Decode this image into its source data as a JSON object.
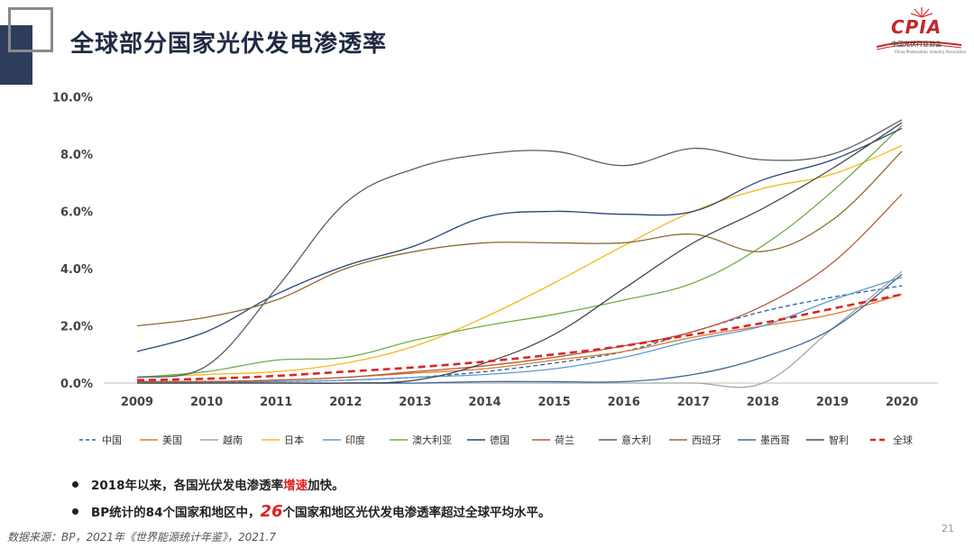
{
  "header": {
    "title": "全球部分国家光伏发电渗透率",
    "logo": {
      "name": "CPIA",
      "line1": "中国光伏行业协会",
      "line2": "China Photovoltaic Industry Association"
    }
  },
  "chart_data": {
    "type": "line",
    "title": "",
    "xlabel": "",
    "ylabel": "",
    "x": [
      "2009",
      "2010",
      "2011",
      "2012",
      "2013",
      "2014",
      "2015",
      "2016",
      "2017",
      "2018",
      "2019",
      "2020"
    ],
    "ylim": [
      0,
      10
    ],
    "yticks": [
      "0.0%",
      "2.0%",
      "4.0%",
      "6.0%",
      "8.0%",
      "10.0%"
    ],
    "grid": false,
    "legend_position": "bottom",
    "series": [
      {
        "name": "中国",
        "color": "#2e5fa8",
        "dash": "dashed",
        "values": [
          0.05,
          0.05,
          0.05,
          0.1,
          0.2,
          0.4,
          0.7,
          1.1,
          1.8,
          2.5,
          3.0,
          3.4
        ]
      },
      {
        "name": "美国",
        "color": "#e07a2a",
        "dash": "solid",
        "values": [
          0.05,
          0.05,
          0.1,
          0.2,
          0.35,
          0.5,
          0.8,
          1.1,
          1.6,
          2.0,
          2.4,
          3.1
        ]
      },
      {
        "name": "越南",
        "color": "#a5a5a5",
        "dash": "solid",
        "values": [
          0,
          0,
          0,
          0,
          0,
          0,
          0,
          0,
          0,
          0,
          1.9,
          3.9
        ]
      },
      {
        "name": "日本",
        "color": "#f5b81c",
        "dash": "solid",
        "values": [
          0.2,
          0.3,
          0.4,
          0.7,
          1.3,
          2.3,
          3.5,
          4.8,
          6.0,
          6.8,
          7.3,
          8.3
        ]
      },
      {
        "name": "印度",
        "color": "#5b9bd5",
        "dash": "solid",
        "values": [
          0,
          0,
          0.05,
          0.1,
          0.2,
          0.3,
          0.5,
          0.9,
          1.5,
          2.0,
          2.9,
          3.7
        ]
      },
      {
        "name": "澳大利亚",
        "color": "#70ad47",
        "dash": "solid",
        "values": [
          0.2,
          0.4,
          0.8,
          0.9,
          1.5,
          2.0,
          2.4,
          2.9,
          3.5,
          4.8,
          6.7,
          9.0
        ]
      },
      {
        "name": "德国",
        "color": "#264478",
        "dash": "solid",
        "values": [
          1.1,
          1.8,
          3.1,
          4.1,
          4.8,
          5.8,
          6.0,
          5.9,
          6.0,
          7.1,
          7.8,
          8.9
        ]
      },
      {
        "name": "荷兰",
        "color": "#b55a3a",
        "dash": "solid",
        "values": [
          0.05,
          0.05,
          0.1,
          0.2,
          0.4,
          0.6,
          0.9,
          1.3,
          1.8,
          2.7,
          4.2,
          6.6
        ]
      },
      {
        "name": "意大利",
        "color": "#555e6e",
        "dash": "solid",
        "values": [
          0.2,
          0.6,
          3.3,
          6.3,
          7.5,
          8.0,
          8.1,
          7.6,
          8.2,
          7.8,
          8.0,
          9.2
        ]
      },
      {
        "name": "西班牙",
        "color": "#8a6d2c",
        "dash": "solid",
        "values": [
          2.0,
          2.3,
          2.9,
          4.0,
          4.6,
          4.9,
          4.9,
          4.9,
          5.2,
          4.6,
          5.7,
          8.1
        ]
      },
      {
        "name": "墨西哥",
        "color": "#3d6a9c",
        "dash": "solid",
        "values": [
          0,
          0,
          0,
          0,
          0,
          0.05,
          0.05,
          0.05,
          0.3,
          0.9,
          1.9,
          3.8
        ]
      },
      {
        "name": "智利",
        "color": "#4a4a4a",
        "dash": "solid",
        "values": [
          0,
          0,
          0,
          0,
          0.1,
          0.7,
          1.7,
          3.3,
          4.9,
          6.1,
          7.5,
          9.1
        ]
      },
      {
        "name": "全球",
        "color": "#d62828",
        "dash": "dashed-bold",
        "values": [
          0.1,
          0.15,
          0.25,
          0.4,
          0.55,
          0.75,
          1.0,
          1.3,
          1.7,
          2.1,
          2.6,
          3.1
        ]
      }
    ]
  },
  "bullets": {
    "b1_pre": "2018年以来，各国光伏发电渗透率",
    "b1_red": "增速",
    "b1_post": "加快。",
    "b2_pre": "BP统计的84个国家和地区中，",
    "b2_num": "26",
    "b2_post": "个国家和地区光伏发电渗透率超过全球平均水平。"
  },
  "footer": {
    "source": "数据来源：BP，2021年《世界能源统计年鉴》，2021.7",
    "page": "21"
  }
}
